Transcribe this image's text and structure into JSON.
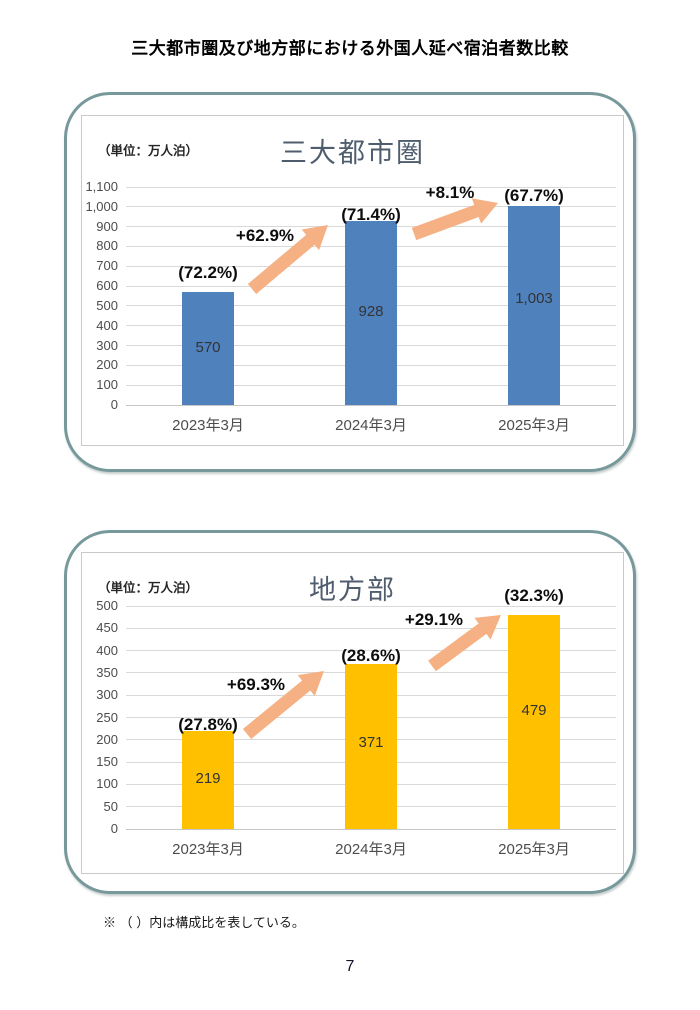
{
  "page": {
    "title": "三大都市圏及び地方部における外国人延べ宿泊者数比較",
    "note": "※ （ ）内は構成比を表している。",
    "page_number": "7"
  },
  "colors": {
    "metro_bar": "#4f81bd",
    "regional_bar": "#ffc000",
    "arrow": "#f5b183",
    "card_border": "#77999b",
    "gridline": "#d9d9d9",
    "chart_title_text": "#505d6e"
  },
  "chart_data": [
    {
      "type": "bar",
      "title": "三大都市圏",
      "unit_label": "（単位：万人泊）",
      "categories": [
        "2023年3月",
        "2024年3月",
        "2025年3月"
      ],
      "values": [
        570,
        928,
        1003
      ],
      "value_labels": [
        "570",
        "928",
        "1,003"
      ],
      "share_labels": [
        "(72.2%)",
        "(71.4%)",
        "(67.7%)"
      ],
      "growth_labels": [
        "+62.9%",
        "+8.1%"
      ],
      "bar_color": "#4f81bd",
      "xlabel": "",
      "ylabel": "",
      "ylim": [
        0,
        1100
      ],
      "ytick_step": 100,
      "grid": true,
      "legend": false
    },
    {
      "type": "bar",
      "title": "地方部",
      "unit_label": "（単位：万人泊）",
      "categories": [
        "2023年3月",
        "2024年3月",
        "2025年3月"
      ],
      "values": [
        219,
        371,
        479
      ],
      "value_labels": [
        "219",
        "371",
        "479"
      ],
      "share_labels": [
        "(27.8%)",
        "(28.6%)",
        "(32.3%)"
      ],
      "growth_labels": [
        "+69.3%",
        "+29.1%"
      ],
      "bar_color": "#ffc000",
      "xlabel": "",
      "ylabel": "",
      "ylim": [
        0,
        500
      ],
      "ytick_step": 50,
      "grid": true,
      "legend": false
    }
  ]
}
